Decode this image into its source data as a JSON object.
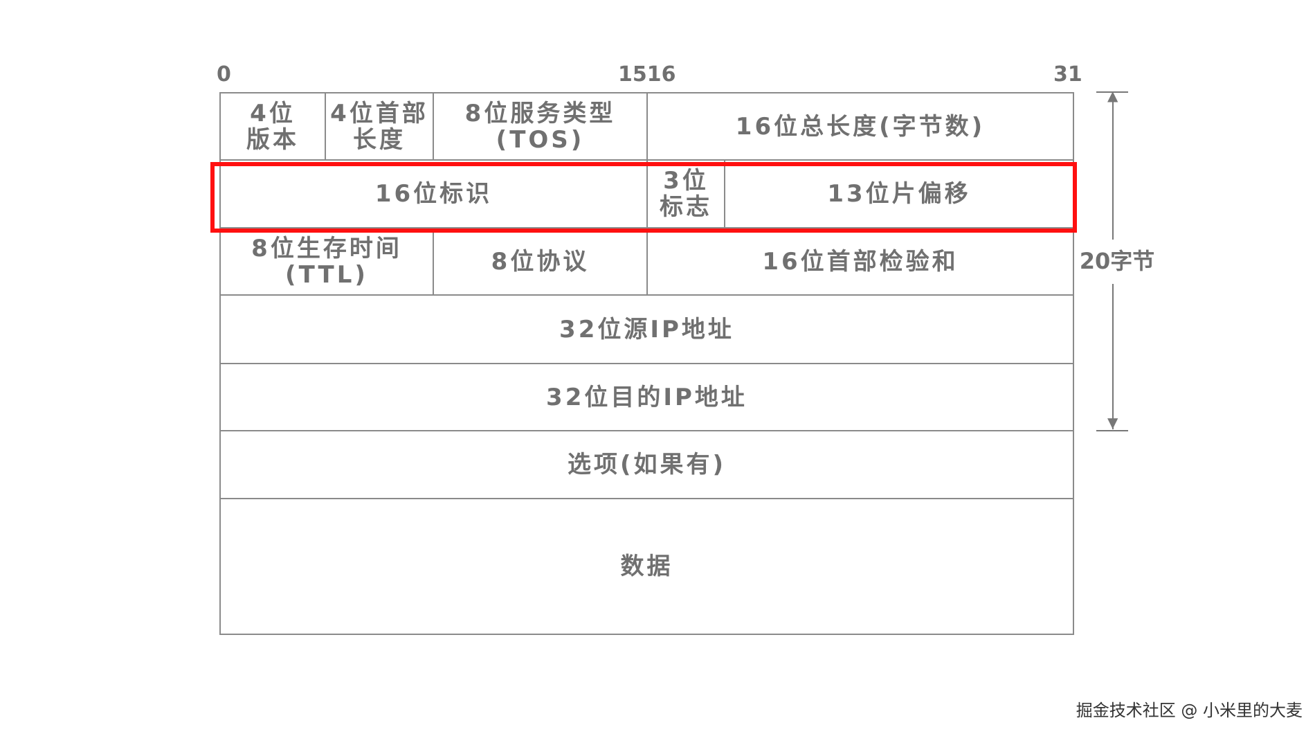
{
  "bit_labels": {
    "start": "0",
    "mid": "1516",
    "end": "31"
  },
  "rows": [
    [
      "4位\n版本",
      "4位首部\n长度",
      "8位服务类型\n(TOS)",
      "16位总长度(字节数)"
    ],
    [
      "16位标识",
      "3位\n标志",
      "13位片偏移"
    ],
    [
      "8位生存时间\n(TTL)",
      "8位协议",
      "16位首部检验和"
    ],
    [
      "32位源IP地址"
    ],
    [
      "32位目的IP地址"
    ],
    [
      "选项(如果有)"
    ],
    [
      "数据"
    ]
  ],
  "header_size_label": "20字节",
  "highlight_color": "#ff1010",
  "watermark": "掘金技术社区 @ 小米里的大麦"
}
